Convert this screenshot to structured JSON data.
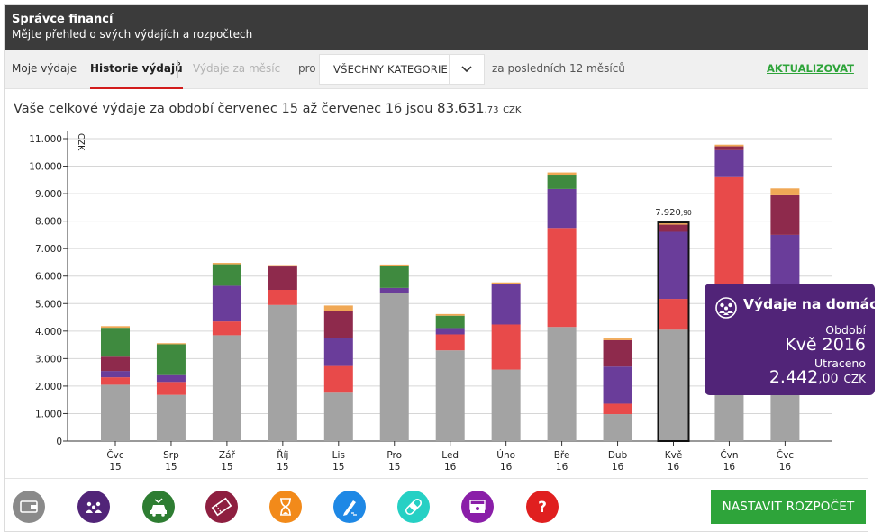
{
  "app": {
    "title": "Správce financí",
    "subtitle": "Mějte přehled o svých výdajích a rozpočtech"
  },
  "toolbar": {
    "tab_my": "Moje výdaje",
    "tab_history": "Historie výdajů",
    "tab_month": "Výdaje za měsíc",
    "label_for": "pro",
    "category_value": "VŠECHNY KATEGORIE",
    "period_label": "za posledních 12 měsíců",
    "refresh_label": "AKTUALIZOVAT"
  },
  "summary": {
    "text": "Vaše celkové výdaje za období červenec 15 až červenec 16 jsou",
    "amount_int": "83.631",
    "amount_dec": ",73",
    "currency": "CZK"
  },
  "tooltip": {
    "title": "Výdaje na domácnost",
    "period_label": "Období",
    "period_value": "Kvě 2016",
    "spent_label": "Utraceno",
    "spent_int": "2.442",
    "spent_dec": ",00",
    "spent_currency": "CZK",
    "icon": "household-icon"
  },
  "categories_bar": [
    {
      "name": "finance-category-button",
      "icon": "wallet-icon",
      "color": "#8a8a8a"
    },
    {
      "name": "household-category-button",
      "icon": "household-icon",
      "color": "#512478"
    },
    {
      "name": "transport-category-button",
      "icon": "car-icon",
      "color": "#2e7d32"
    },
    {
      "name": "entertainment-category-button",
      "icon": "ticket-icon",
      "color": "#8e1f40"
    },
    {
      "name": "time-category-button",
      "icon": "hourglass-icon",
      "color": "#f28a1a"
    },
    {
      "name": "shopping-category-button",
      "icon": "pen-icon",
      "color": "#1e88e5"
    },
    {
      "name": "health-category-button",
      "icon": "bandage-icon",
      "color": "#26d0c4"
    },
    {
      "name": "cash-category-button",
      "icon": "cash-icon",
      "color": "#8a1ea8"
    },
    {
      "name": "other-category-button",
      "icon": "question-icon",
      "color": "#e01f1f"
    }
  ],
  "budget_button": "NASTAVIT ROZPOČET",
  "chart_data": {
    "type": "bar",
    "stacked": true,
    "ylabel": "CZK",
    "ylim": [
      0,
      11000
    ],
    "yticks": [
      0,
      1000,
      2000,
      3000,
      4000,
      5000,
      6000,
      7000,
      8000,
      9000,
      10000,
      11000
    ],
    "ytick_labels": [
      "0",
      "1.000",
      "2.000",
      "3.000",
      "4.000",
      "5.000",
      "6.000",
      "7.000",
      "8.000",
      "9.000",
      "10.000",
      "11.000"
    ],
    "grid": true,
    "categories": [
      {
        "m": "Čvc",
        "y": "15"
      },
      {
        "m": "Srp",
        "y": "15"
      },
      {
        "m": "Zář",
        "y": "15"
      },
      {
        "m": "Říj",
        "y": "15"
      },
      {
        "m": "Lis",
        "y": "15"
      },
      {
        "m": "Pro",
        "y": "15"
      },
      {
        "m": "Led",
        "y": "16"
      },
      {
        "m": "Úno",
        "y": "16"
      },
      {
        "m": "Bře",
        "y": "16"
      },
      {
        "m": "Dub",
        "y": "16"
      },
      {
        "m": "Kvě",
        "y": "16"
      },
      {
        "m": "Čvn",
        "y": "16"
      },
      {
        "m": "Čvc",
        "y": "16"
      }
    ],
    "series": [
      {
        "color": "#a3a3a3",
        "values": [
          2050,
          1680,
          3850,
          4950,
          1760,
          5380,
          3300,
          2600,
          4150,
          980,
          4050,
          2950,
          3900
        ]
      },
      {
        "color": "#e84a4a",
        "values": [
          270,
          470,
          500,
          550,
          970,
          0,
          580,
          1640,
          3600,
          380,
          1120,
          6650,
          0
        ]
      },
      {
        "color": "#6a3d9a",
        "values": [
          230,
          250,
          1300,
          0,
          1030,
          190,
          230,
          1470,
          1420,
          1350,
          2442,
          980,
          3600
        ]
      },
      {
        "color": "#8e2a4c",
        "values": [
          520,
          0,
          0,
          850,
          960,
          0,
          0,
          0,
          0,
          960,
          260,
          140,
          1440
        ]
      },
      {
        "color": "#3f8a3f",
        "values": [
          1050,
          1120,
          780,
          0,
          0,
          800,
          450,
          0,
          520,
          0,
          0,
          0,
          0
        ]
      },
      {
        "color": "#f0a856",
        "values": [
          60,
          40,
          50,
          50,
          210,
          50,
          60,
          60,
          80,
          60,
          49,
          60,
          250
        ]
      }
    ],
    "highlight": {
      "index": 10,
      "label_int": "7.920",
      "label_dec": ",90"
    }
  }
}
